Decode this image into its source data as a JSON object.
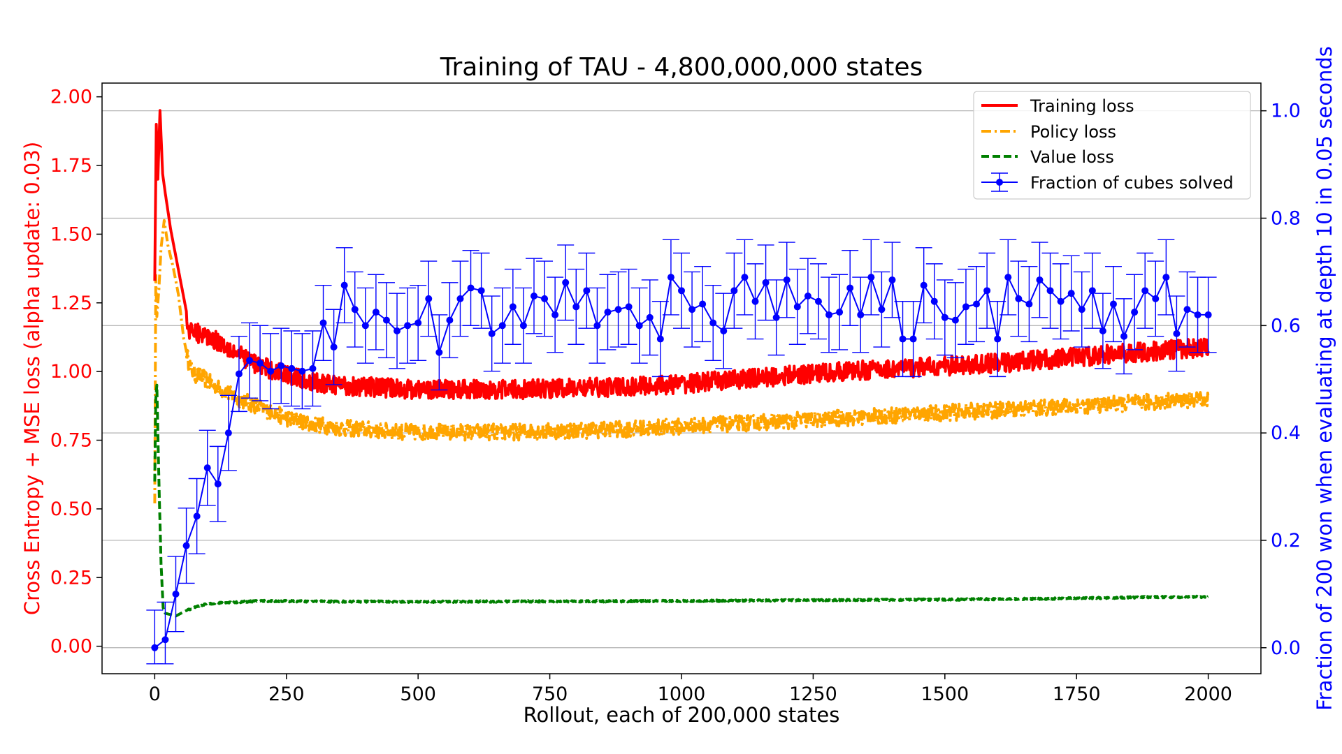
{
  "chart_data": {
    "type": "line",
    "title": "Training of TAU - 4,800,000,000 states",
    "xlabel": "Rollout, each of 200,000 states",
    "ylabel_left": "Cross Entropy + MSE loss (alpha update: 0.03)",
    "ylabel_right": "Fraction of 200 won when evaluating at depth 10 in 0.05 seconds",
    "xlim": [
      -100,
      2100
    ],
    "ylim_left": [
      -0.1,
      2.05
    ],
    "ylim_right": [
      -0.0484,
      1.0516
    ],
    "x_ticks": [
      0,
      250,
      500,
      750,
      1000,
      1250,
      1500,
      1750,
      2000
    ],
    "x_tick_labels": [
      "0",
      "250",
      "500",
      "750",
      "1000",
      "1250",
      "1500",
      "1750",
      "2000"
    ],
    "y_left_ticks": [
      0.0,
      0.25,
      0.5,
      0.75,
      1.0,
      1.25,
      1.5,
      1.75,
      2.0
    ],
    "y_left_tick_labels": [
      "0.00",
      "0.25",
      "0.50",
      "0.75",
      "1.00",
      "1.25",
      "1.50",
      "1.75",
      "2.00"
    ],
    "y_right_ticks": [
      0.0,
      0.2,
      0.4,
      0.6,
      0.8,
      1.0
    ],
    "y_right_tick_labels": [
      "0.0",
      "0.2",
      "0.4",
      "0.6",
      "0.8",
      "1.0"
    ],
    "grid": "horizontal lines at right-axis ticks",
    "legend_position": "top-right",
    "colors": {
      "training": "#ff0000",
      "policy": "#ffa500",
      "value": "#008000",
      "fraction": "#0000ff",
      "left_axis": "#ff0000",
      "right_axis": "#0000ff"
    },
    "series": [
      {
        "name": "Training loss",
        "axis": "left",
        "style": "solid",
        "noise": 0.035,
        "x": [
          0,
          3,
          6,
          10,
          15,
          20,
          30,
          40,
          50,
          60,
          65,
          80,
          100,
          130,
          160,
          200,
          250,
          300,
          350,
          400,
          450,
          500,
          600,
          700,
          800,
          900,
          1000,
          1100,
          1200,
          1300,
          1400,
          1500,
          1600,
          1700,
          1800,
          1900,
          2000
        ],
        "y": [
          1.33,
          1.9,
          1.7,
          1.95,
          1.72,
          1.65,
          1.52,
          1.42,
          1.32,
          1.22,
          1.14,
          1.14,
          1.13,
          1.1,
          1.06,
          1.02,
          0.99,
          0.96,
          0.95,
          0.945,
          0.94,
          0.935,
          0.935,
          0.935,
          0.94,
          0.945,
          0.955,
          0.97,
          0.985,
          1.0,
          1.01,
          1.02,
          1.03,
          1.045,
          1.06,
          1.075,
          1.09
        ]
      },
      {
        "name": "Policy loss",
        "axis": "left",
        "style": "dashdot",
        "noise": 0.03,
        "x": [
          0,
          2,
          4,
          8,
          12,
          18,
          25,
          35,
          45,
          55,
          65,
          75,
          90,
          120,
          160,
          200,
          250,
          300,
          350,
          400,
          450,
          500,
          600,
          700,
          800,
          900,
          1000,
          1100,
          1200,
          1300,
          1400,
          1500,
          1600,
          1700,
          1800,
          1900,
          2000
        ],
        "y": [
          0.52,
          1.35,
          1.2,
          1.3,
          1.45,
          1.55,
          1.46,
          1.38,
          1.28,
          1.12,
          1.03,
          0.99,
          0.98,
          0.94,
          0.9,
          0.87,
          0.83,
          0.81,
          0.795,
          0.79,
          0.78,
          0.78,
          0.78,
          0.78,
          0.785,
          0.79,
          0.8,
          0.81,
          0.82,
          0.83,
          0.84,
          0.85,
          0.86,
          0.87,
          0.88,
          0.89,
          0.9
        ]
      },
      {
        "name": "Value loss",
        "axis": "left",
        "style": "dashed",
        "noise": 0.003,
        "x": [
          0,
          2,
          4,
          8,
          12,
          16,
          20,
          30,
          40,
          50,
          60,
          80,
          100,
          150,
          200,
          300,
          500,
          700,
          900,
          1100,
          1300,
          1500,
          1700,
          1800,
          1900,
          2000
        ],
        "y": [
          0.6,
          0.9,
          0.95,
          0.6,
          0.3,
          0.14,
          0.12,
          0.115,
          0.11,
          0.12,
          0.13,
          0.145,
          0.155,
          0.16,
          0.165,
          0.163,
          0.162,
          0.163,
          0.164,
          0.166,
          0.168,
          0.17,
          0.173,
          0.176,
          0.179,
          0.18
        ]
      },
      {
        "name": "Fraction of cubes solved",
        "axis": "right",
        "style": "solid-marker",
        "error": 0.07,
        "x": [
          0,
          20,
          40,
          60,
          80,
          100,
          120,
          140,
          160,
          180,
          200,
          220,
          240,
          260,
          280,
          300,
          320,
          340,
          360,
          380,
          400,
          420,
          440,
          460,
          480,
          500,
          520,
          540,
          560,
          580,
          600,
          620,
          640,
          660,
          680,
          700,
          720,
          740,
          760,
          780,
          800,
          820,
          840,
          860,
          880,
          900,
          920,
          940,
          960,
          980,
          1000,
          1020,
          1040,
          1060,
          1080,
          1100,
          1120,
          1140,
          1160,
          1180,
          1200,
          1220,
          1240,
          1260,
          1280,
          1300,
          1320,
          1340,
          1360,
          1380,
          1400,
          1420,
          1440,
          1460,
          1480,
          1500,
          1520,
          1540,
          1560,
          1580,
          1600,
          1620,
          1640,
          1660,
          1680,
          1700,
          1720,
          1740,
          1760,
          1780,
          1800,
          1820,
          1840,
          1860,
          1880,
          1900,
          1920,
          1940,
          1960,
          1980,
          2000
        ],
        "y": [
          0.0,
          0.015,
          0.1,
          0.19,
          0.245,
          0.335,
          0.305,
          0.4,
          0.51,
          0.535,
          0.53,
          0.515,
          0.525,
          0.52,
          0.515,
          0.52,
          0.605,
          0.56,
          0.675,
          0.63,
          0.6,
          0.625,
          0.61,
          0.59,
          0.6,
          0.605,
          0.65,
          0.55,
          0.61,
          0.65,
          0.67,
          0.665,
          0.585,
          0.6,
          0.635,
          0.6,
          0.655,
          0.65,
          0.62,
          0.68,
          0.635,
          0.665,
          0.6,
          0.625,
          0.63,
          0.635,
          0.6,
          0.615,
          0.575,
          0.69,
          0.665,
          0.63,
          0.64,
          0.605,
          0.59,
          0.665,
          0.69,
          0.645,
          0.68,
          0.615,
          0.685,
          0.635,
          0.655,
          0.645,
          0.62,
          0.625,
          0.67,
          0.62,
          0.69,
          0.63,
          0.685,
          0.575,
          0.575,
          0.675,
          0.645,
          0.615,
          0.61,
          0.635,
          0.64,
          0.665,
          0.575,
          0.69,
          0.65,
          0.64,
          0.685,
          0.665,
          0.645,
          0.66,
          0.63,
          0.665,
          0.59,
          0.64,
          0.58,
          0.625,
          0.665,
          0.65,
          0.69,
          0.585,
          0.63,
          0.62,
          0.62
        ]
      }
    ]
  }
}
